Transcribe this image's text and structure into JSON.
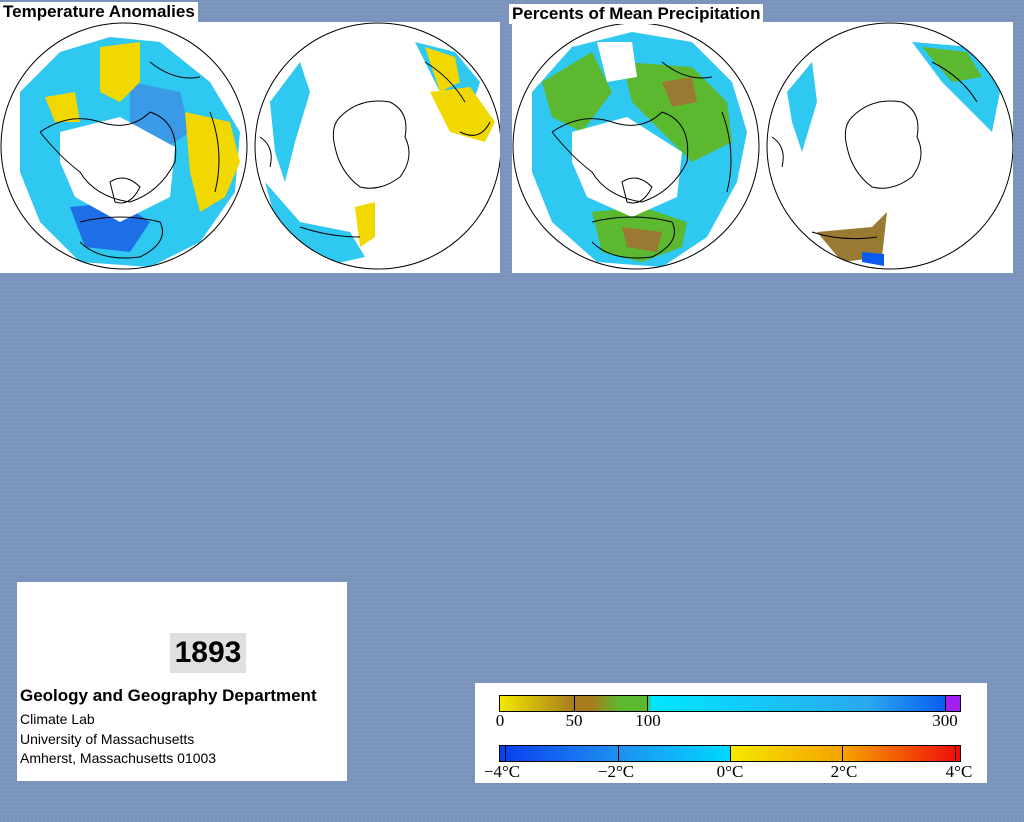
{
  "panels": {
    "temperature": {
      "title": "Temperature Anomalies"
    },
    "precipitation": {
      "title": "Percents of Mean Precipitation"
    }
  },
  "year": "1893",
  "institution": {
    "department": "Geology and Geography Department",
    "lab": "Climate Lab",
    "university": "University of Massachusetts",
    "address": "Amherst, Massachusetts 01003"
  },
  "legend": {
    "precipitation": {
      "ticks": [
        "0",
        "50",
        "100",
        "300"
      ],
      "colors": {
        "dry": "#f5e800",
        "brown": "#a67c1e",
        "green": "#5cb82e",
        "cyan": "#00e6ff",
        "blue": "#0a5cf0",
        "violet": "#a020f0"
      }
    },
    "temperature": {
      "ticks": [
        "−4°C",
        "−2°C",
        "0°C",
        "2°C",
        "4°C"
      ],
      "colors": {
        "cold": "#0a3ef0",
        "cool": "#00d8ff",
        "warm": "#f5e800",
        "hot": "#f00a0a"
      }
    }
  },
  "map_colors": {
    "cool": "#2ec8f0",
    "cold": "#1e6ee6",
    "warm": "#f0d800",
    "green": "#5cb82e",
    "brown": "#9a7a32"
  }
}
